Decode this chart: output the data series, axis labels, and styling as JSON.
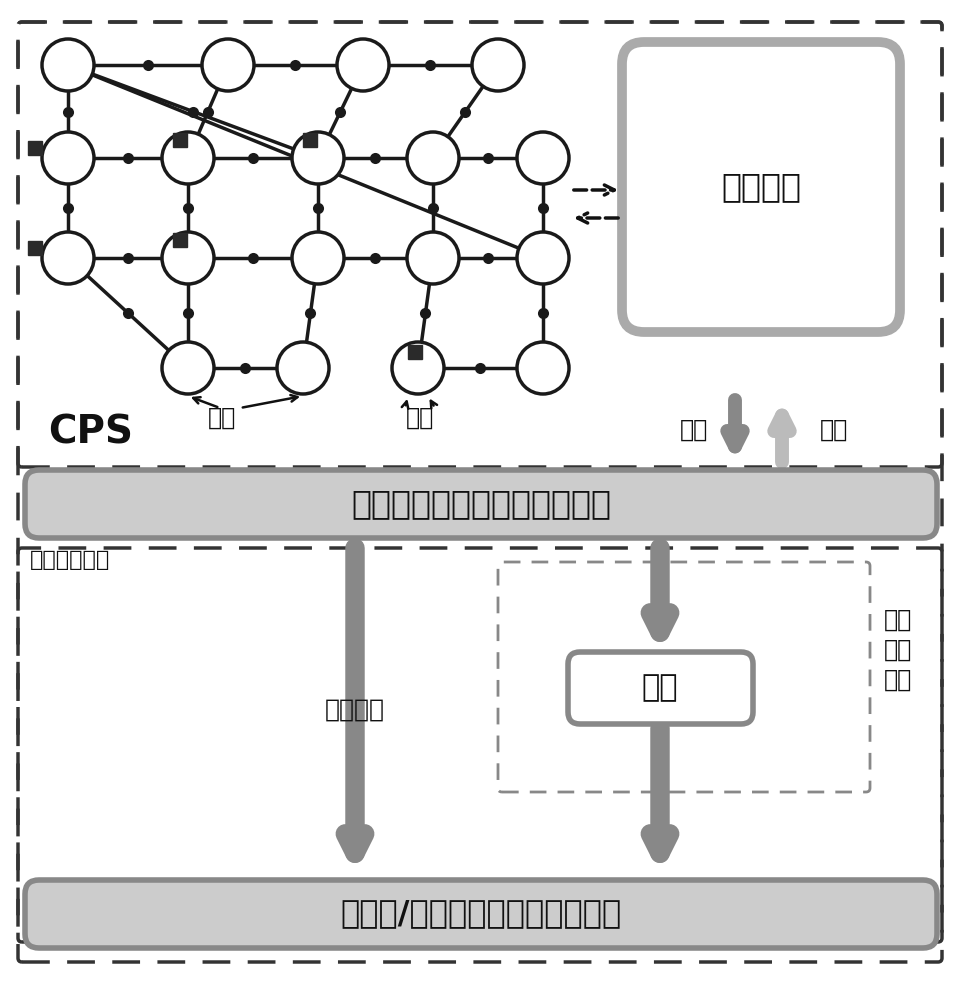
{
  "bg_color": "#ffffff",
  "text_cps": "CPS",
  "text_comm": "通信系统",
  "text_sensing": "传感",
  "text_control": "控制",
  "text_bus": "总线",
  "text_instrument": "仗表",
  "text_datacenter": "系统状态数据采集与控制中心",
  "text_security": "安全监测系统",
  "text_state_data": "状态数据",
  "text_cloud": "云端",
  "text_data_transfer_1": "数据",
  "text_data_transfer_2": "传输",
  "text_data_transfer_3": "机构",
  "text_monitor_center": "（本地/远端）网络安全监测中心",
  "node_r": 26,
  "lw_edge": 2.5,
  "dot_ms": 8,
  "sq_half": 7
}
